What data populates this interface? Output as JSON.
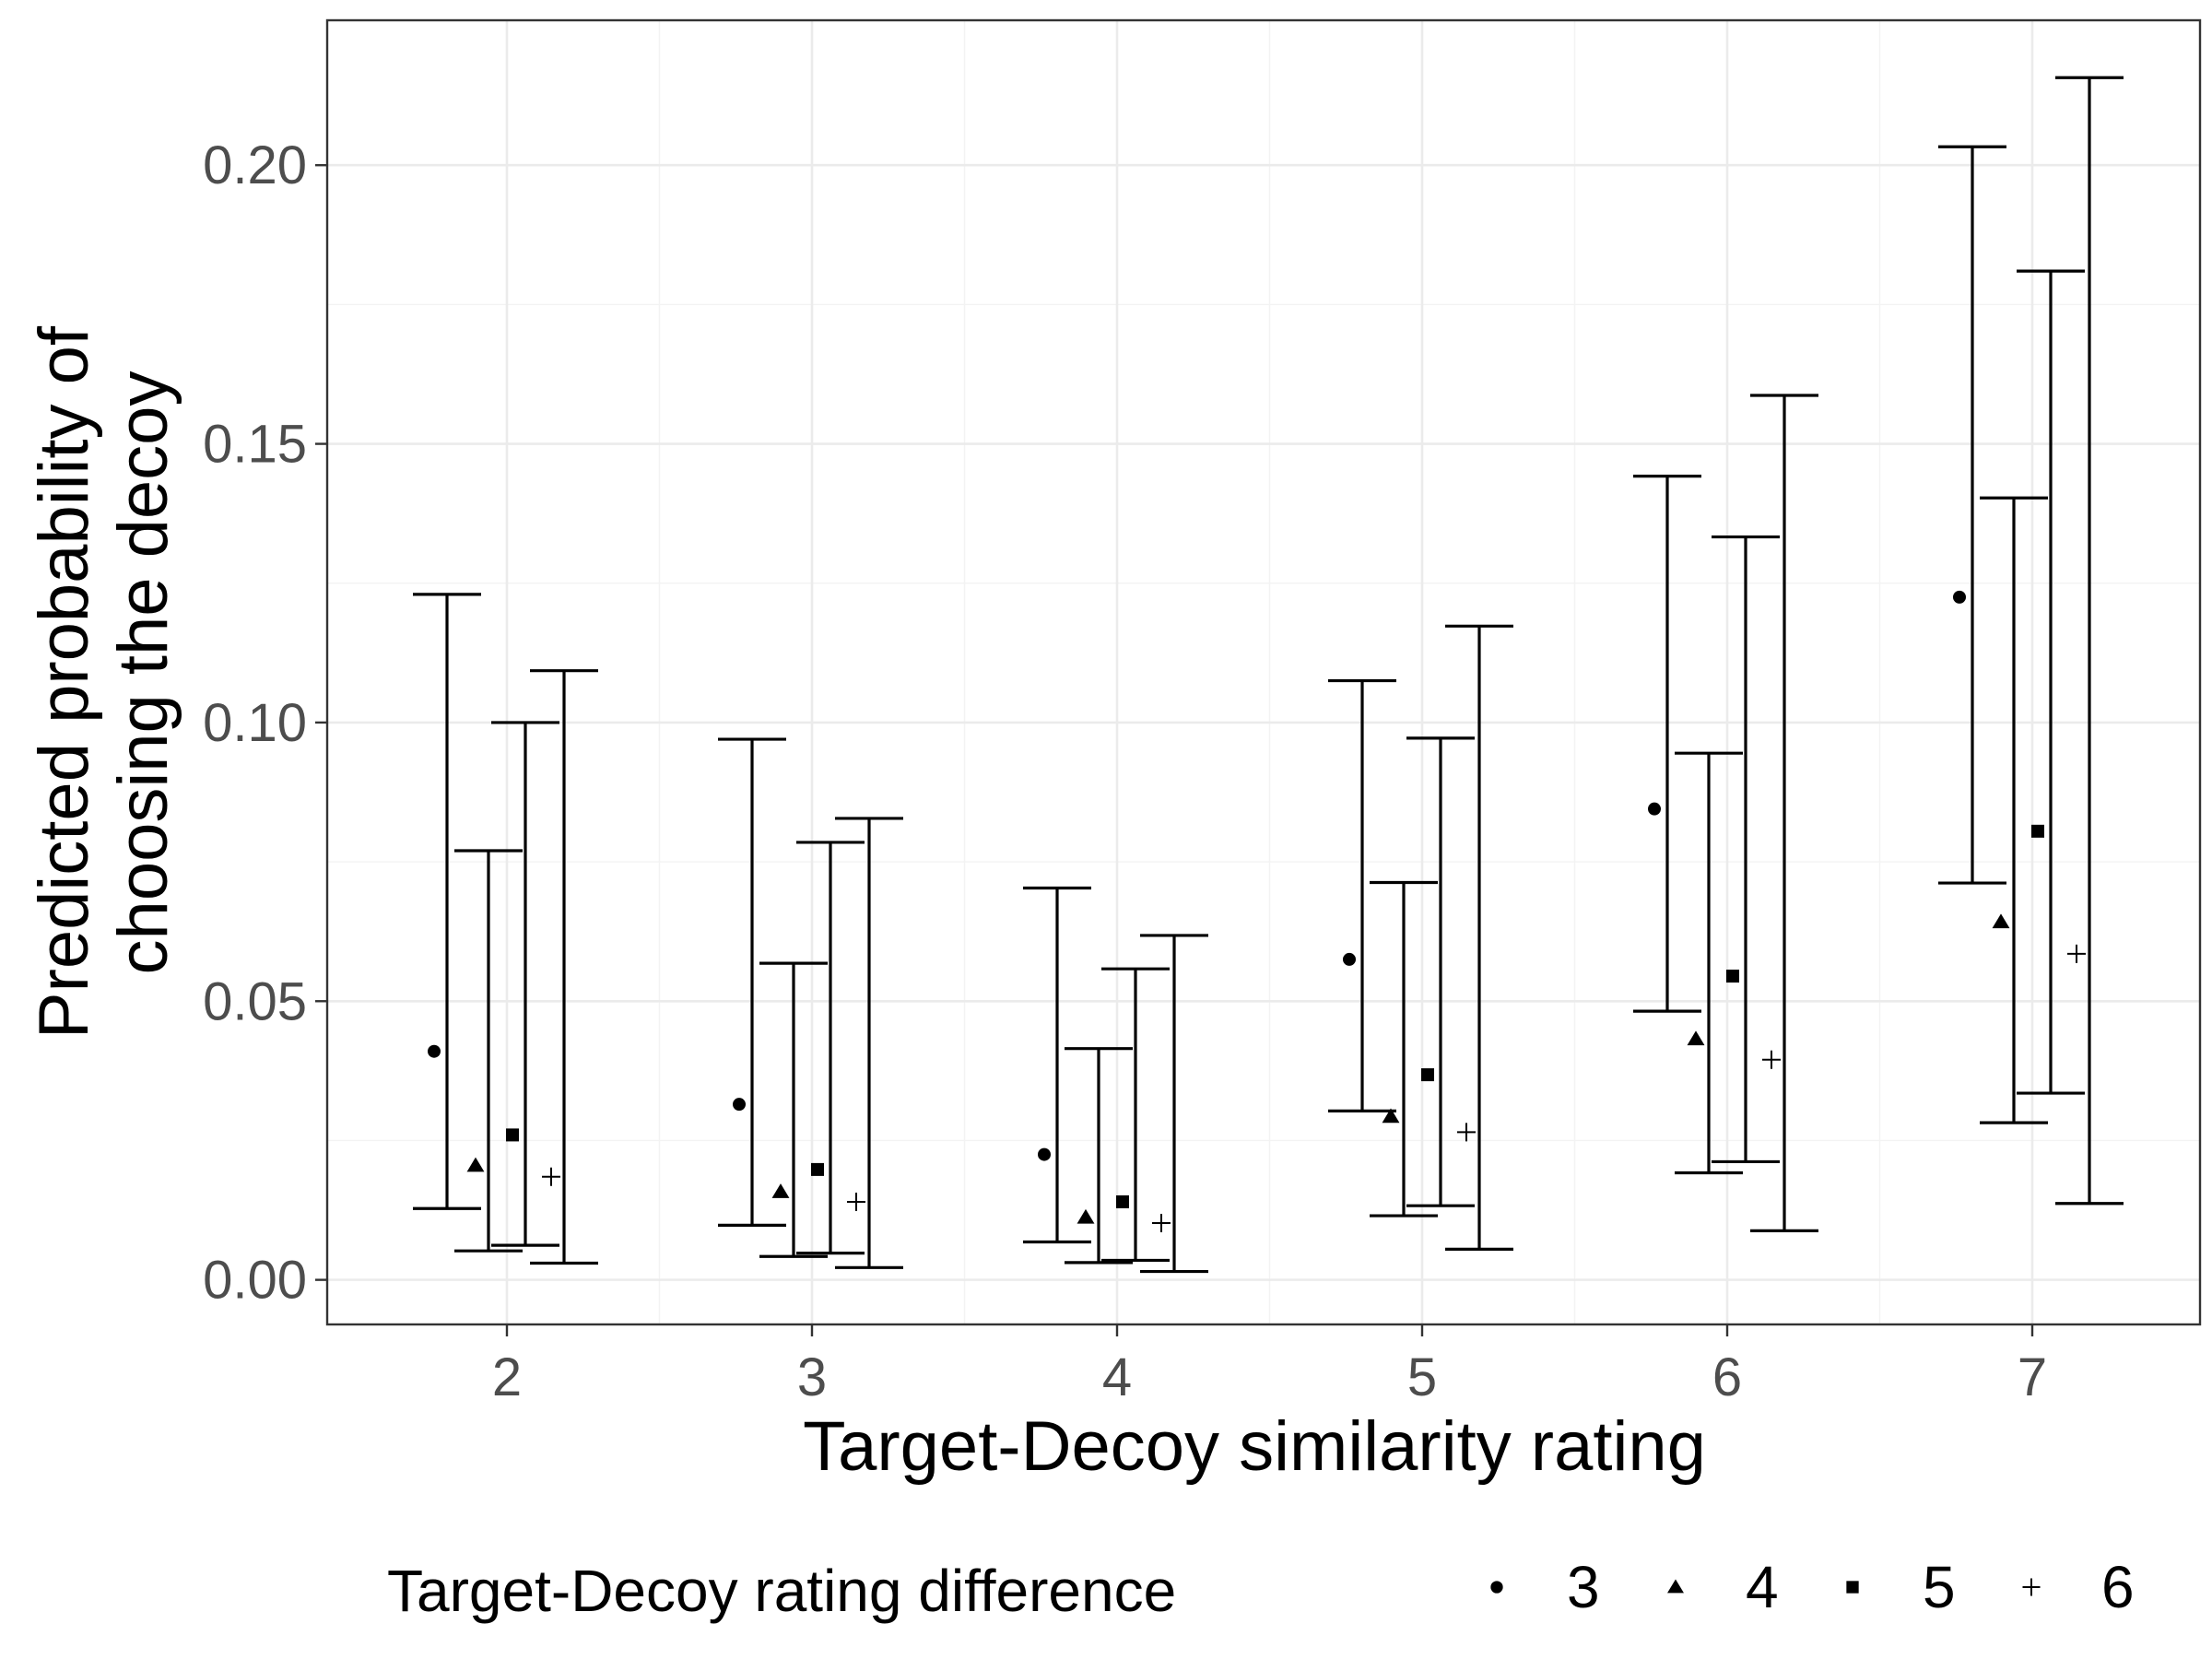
{
  "chart_data": {
    "type": "scatter",
    "subtype": "point-with-errorbars",
    "title": "",
    "xlabel": "Target-Decoy similarity rating",
    "ylabel": [
      "Predicted probability of",
      "choosing the decoy"
    ],
    "categories": [
      "2",
      "3",
      "4",
      "5",
      "6",
      "7"
    ],
    "yticks": [
      "0.00",
      "0.05",
      "0.10",
      "0.15",
      "0.20"
    ],
    "ylim": [
      -0.008,
      0.226
    ],
    "grid": true,
    "legend": {
      "title": "Target-Decoy rating difference",
      "position": "bottom",
      "entries": [
        {
          "label": "3",
          "shape": "circle"
        },
        {
          "label": "4",
          "shape": "triangle"
        },
        {
          "label": "5",
          "shape": "square"
        },
        {
          "label": "6",
          "shape": "plus"
        }
      ]
    },
    "series": [
      {
        "name": "3",
        "shape": "circle",
        "values": [
          0.041,
          0.0315,
          0.0225,
          0.0575,
          0.0845,
          0.1225
        ],
        "lower": [
          0.0128,
          0.0098,
          0.0068,
          0.0303,
          0.0482,
          0.0712
        ],
        "upper": [
          0.123,
          0.097,
          0.0703,
          0.1075,
          0.1442,
          0.2033
        ]
      },
      {
        "name": "4",
        "shape": "triangle",
        "values": [
          0.0205,
          0.0158,
          0.0112,
          0.0293,
          0.0432,
          0.0642
        ],
        "lower": [
          0.0052,
          0.0042,
          0.0031,
          0.0115,
          0.0192,
          0.0282
        ],
        "upper": [
          0.077,
          0.0568,
          0.0415,
          0.0713,
          0.0945,
          0.1403
        ]
      },
      {
        "name": "5",
        "shape": "square",
        "values": [
          0.026,
          0.0198,
          0.014,
          0.0368,
          0.0545,
          0.0805
        ],
        "lower": [
          0.0062,
          0.0048,
          0.0035,
          0.0133,
          0.0212,
          0.0335
        ],
        "upper": [
          0.1,
          0.0785,
          0.0558,
          0.0972,
          0.1333,
          0.181
        ]
      },
      {
        "name": "6",
        "shape": "plus",
        "values": [
          0.0185,
          0.014,
          0.0102,
          0.0265,
          0.0395,
          0.0585
        ],
        "lower": [
          0.003,
          0.0022,
          0.0015,
          0.0055,
          0.0088,
          0.0137
        ],
        "upper": [
          0.1093,
          0.0828,
          0.0618,
          0.1173,
          0.1587,
          0.2157
        ]
      }
    ]
  }
}
